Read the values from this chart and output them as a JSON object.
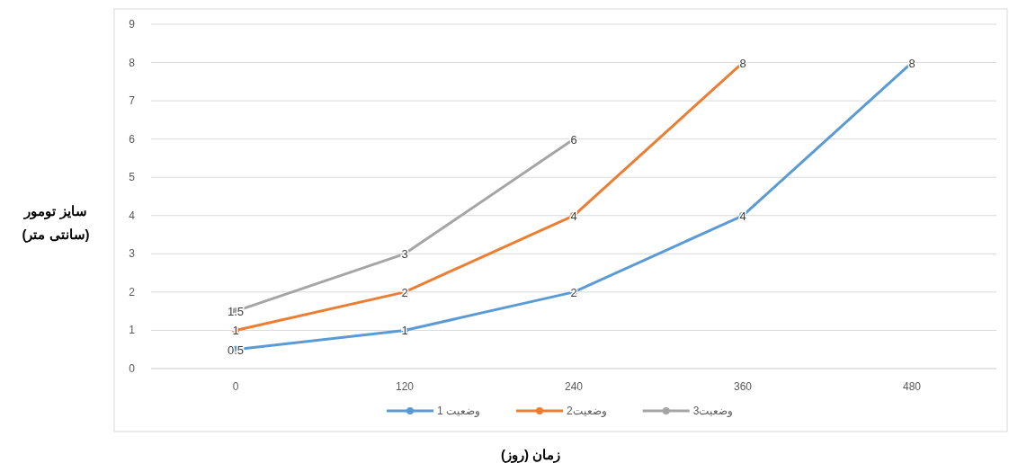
{
  "chart_data": {
    "type": "line",
    "xlabel": "زمان (روز)",
    "ylabel": "سایز تومور (سانتی متر)",
    "categories": [
      "0",
      "120",
      "240",
      "360",
      "480"
    ],
    "series": [
      {
        "name": "وضعیت 1",
        "color": "#5b9bd5",
        "values": [
          0.5,
          1,
          2,
          4,
          8
        ]
      },
      {
        "name": "وضعیت2",
        "color": "#ed7d31",
        "values": [
          1,
          2,
          4,
          8,
          null
        ]
      },
      {
        "name": "وضعیت3",
        "color": "#a5a5a5",
        "values": [
          1.5,
          3,
          6,
          null,
          null
        ]
      }
    ],
    "ylim": [
      0,
      9
    ],
    "yticks": [
      0,
      1,
      2,
      3,
      4,
      5,
      6,
      7,
      8,
      9
    ],
    "grid": "y",
    "legend": "bottom",
    "marker": "circle",
    "line_style": "solid",
    "data_labels": true
  }
}
